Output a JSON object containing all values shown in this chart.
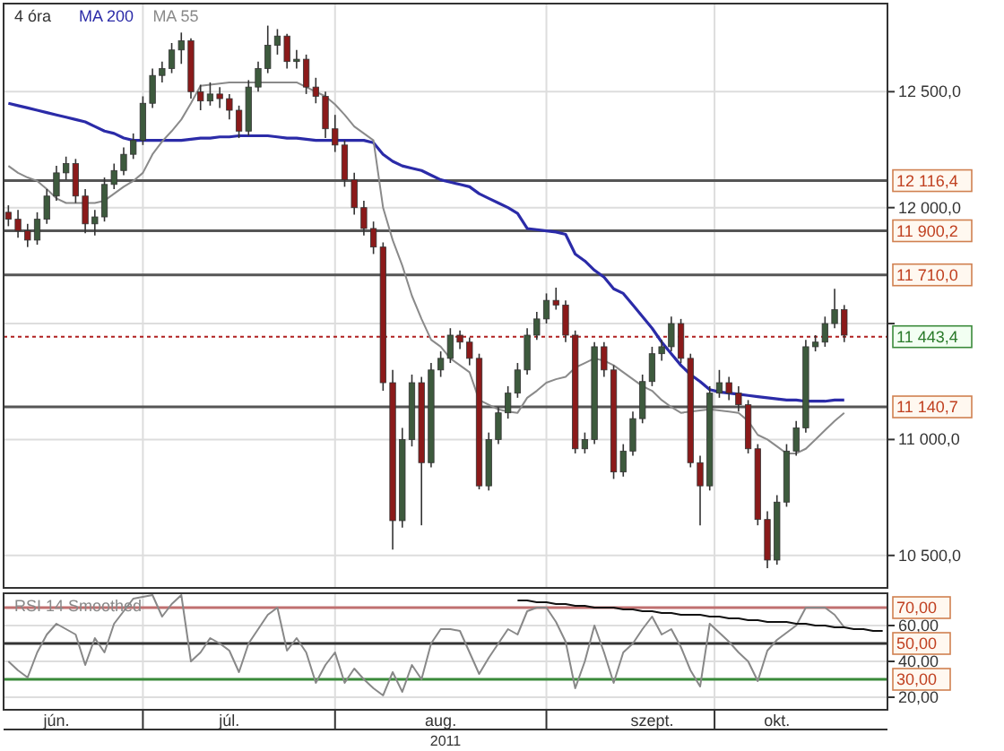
{
  "chart_data": [
    {
      "type": "candlestick",
      "legend": "top left",
      "grid": true,
      "tick_labels": "y",
      "categories": [
        null,
        null,
        null,
        null,
        null,
        null,
        null,
        null,
        null,
        null,
        null,
        null,
        null,
        null,
        null,
        null,
        null,
        null,
        null,
        null,
        null,
        null,
        null,
        null,
        null,
        null,
        null,
        null,
        null,
        null,
        null,
        null,
        null,
        null,
        null,
        null,
        null,
        null,
        null,
        null,
        null,
        null,
        null,
        null,
        null,
        null,
        null,
        null,
        null,
        null,
        null,
        null,
        null,
        null,
        null,
        null,
        null,
        null,
        null,
        null,
        null,
        null,
        null,
        null,
        null,
        null,
        null,
        null,
        null,
        null,
        null,
        null,
        null,
        null,
        null,
        null,
        null,
        null,
        null,
        null,
        null,
        null,
        null,
        null,
        null,
        null,
        null,
        null,
        null,
        null,
        null,
        null
      ],
      "series": [
        {
          "name": "4 óra",
          "color": "#333333",
          "ohlc": [
            [
              11980,
              12010,
              11920,
              11950
            ],
            [
              11950,
              11990,
              11870,
              11900
            ],
            [
              11900,
              11930,
              11830,
              11860
            ],
            [
              11860,
              11980,
              11840,
              11950
            ],
            [
              11950,
              12080,
              11930,
              12050
            ],
            [
              12050,
              12180,
              12030,
              12150
            ],
            [
              12150,
              12220,
              12120,
              12190
            ],
            [
              12190,
              12210,
              12020,
              12050
            ],
            [
              12050,
              12080,
              11890,
              11930
            ],
            [
              11930,
              11990,
              11880,
              11960
            ],
            [
              11960,
              12130,
              11940,
              12100
            ],
            [
              12100,
              12190,
              12080,
              12160
            ],
            [
              12160,
              12260,
              12140,
              12230
            ],
            [
              12230,
              12320,
              12210,
              12290
            ],
            [
              12290,
              12480,
              12270,
              12450
            ],
            [
              12450,
              12600,
              12430,
              12570
            ],
            [
              12570,
              12630,
              12540,
              12600
            ],
            [
              12600,
              12710,
              12580,
              12680
            ],
            [
              12680,
              12755,
              12620,
              12720
            ],
            [
              12720,
              12730,
              12470,
              12500
            ],
            [
              12500,
              12530,
              12420,
              12460
            ],
            [
              12460,
              12540,
              12440,
              12490
            ],
            [
              12490,
              12520,
              12430,
              12470
            ],
            [
              12470,
              12490,
              12380,
              12420
            ],
            [
              12420,
              12440,
              12300,
              12330
            ],
            [
              12330,
              12550,
              12310,
              12520
            ],
            [
              12520,
              12630,
              12500,
              12600
            ],
            [
              12600,
              12785,
              12580,
              12700
            ],
            [
              12700,
              12770,
              12660,
              12740
            ],
            [
              12740,
              12750,
              12600,
              12630
            ],
            [
              12630,
              12680,
              12600,
              12640
            ],
            [
              12640,
              12660,
              12490,
              12520
            ],
            [
              12520,
              12560,
              12450,
              12480
            ],
            [
              12480,
              12500,
              12300,
              12340
            ],
            [
              12340,
              12400,
              12240,
              12270
            ],
            [
              12270,
              12290,
              12090,
              12120
            ],
            [
              12120,
              12150,
              11970,
              12000
            ],
            [
              12000,
              12030,
              11880,
              11910
            ],
            [
              11910,
              11940,
              11800,
              11830
            ],
            [
              11830,
              11850,
              11210,
              11245
            ],
            [
              11245,
              11300,
              10525,
              10650
            ],
            [
              10650,
              11050,
              10620,
              11000
            ],
            [
              11000,
              11280,
              10970,
              11245
            ],
            [
              11245,
              11270,
              10630,
              10900
            ],
            [
              10900,
              11330,
              10880,
              11300
            ],
            [
              11300,
              11380,
              11270,
              11350
            ],
            [
              11350,
              11480,
              11330,
              11450
            ],
            [
              11450,
              11470,
              11390,
              11420
            ],
            [
              11420,
              11440,
              11320,
              11350
            ],
            [
              11350,
              11370,
              10785,
              10800
            ],
            [
              10800,
              11030,
              10780,
              11000
            ],
            [
              11000,
              11140,
              10980,
              11115
            ],
            [
              11115,
              11230,
              11090,
              11200
            ],
            [
              11200,
              11330,
              11180,
              11300
            ],
            [
              11300,
              11480,
              11280,
              11450
            ],
            [
              11450,
              11550,
              11430,
              11520
            ],
            [
              11520,
              11630,
              11500,
              11600
            ],
            [
              11600,
              11655,
              11560,
              11580
            ],
            [
              11580,
              11600,
              11420,
              11450
            ],
            [
              11450,
              11470,
              10940,
              10960
            ],
            [
              10960,
              11030,
              10940,
              11000
            ],
            [
              11000,
              11420,
              10980,
              11400
            ],
            [
              11400,
              11420,
              11270,
              11300
            ],
            [
              11300,
              11320,
              10830,
              10860
            ],
            [
              10860,
              10980,
              10840,
              10950
            ],
            [
              10950,
              11120,
              10930,
              11090
            ],
            [
              11090,
              11280,
              11070,
              11250
            ],
            [
              11250,
              11400,
              11230,
              11370
            ],
            [
              11370,
              11430,
              11340,
              11400
            ],
            [
              11400,
              11530,
              11380,
              11500
            ],
            [
              11500,
              11520,
              11330,
              11350
            ],
            [
              11350,
              11370,
              10880,
              10900
            ],
            [
              10900,
              10930,
              10630,
              10800
            ],
            [
              10800,
              11230,
              10780,
              11200
            ],
            [
              11200,
              11300,
              11180,
              11245
            ],
            [
              11245,
              11270,
              11170,
              11200
            ],
            [
              11200,
              11230,
              11120,
              11150
            ],
            [
              11150,
              11170,
              10940,
              10960
            ],
            [
              10960,
              10980,
              10630,
              10655
            ],
            [
              10655,
              10690,
              10445,
              10480
            ],
            [
              10480,
              10760,
              10460,
              10730
            ],
            [
              10730,
              10980,
              10710,
              10950
            ],
            [
              10950,
              11080,
              10930,
              11050
            ],
            [
              11050,
              11430,
              11030,
              11400
            ],
            [
              11400,
              11450,
              11380,
              11420
            ],
            [
              11420,
              11530,
              11400,
              11500
            ],
            [
              11500,
              11650,
              11480,
              11560
            ],
            [
              11560,
              11580,
              11420,
              11450
            ],
            null,
            null,
            null,
            null
          ]
        },
        {
          "name": "MA 200",
          "type": "line",
          "color": "#2b2ba8",
          "values": [
            12450,
            12440,
            12430,
            12420,
            12410,
            12400,
            12390,
            12380,
            12370,
            12350,
            12330,
            12320,
            12300,
            12290,
            12290,
            12290,
            12290,
            12290,
            12290,
            12295,
            12300,
            12300,
            12305,
            12305,
            12310,
            12310,
            12310,
            12310,
            12305,
            12300,
            12300,
            12295,
            12290,
            12290,
            12290,
            12290,
            12290,
            12290,
            12280,
            12230,
            12200,
            12180,
            12170,
            12160,
            12140,
            12120,
            12110,
            12100,
            12090,
            12060,
            12040,
            12020,
            12000,
            11975,
            11910,
            11905,
            11900,
            11895,
            11885,
            11800,
            11770,
            11730,
            11700,
            11650,
            11630,
            11580,
            11530,
            11480,
            11420,
            11370,
            11320,
            11280,
            11250,
            11215,
            11205,
            11200,
            11195,
            11190,
            11185,
            11180,
            11175,
            11170,
            11170,
            11165,
            11165,
            11165,
            11170,
            11170,
            null,
            null,
            null,
            null
          ]
        },
        {
          "name": "MA 55",
          "type": "line",
          "color": "#8a8a8a",
          "values": [
            12180,
            12150,
            12130,
            12115,
            12080,
            12040,
            12020,
            12020,
            12020,
            12020,
            12030,
            12060,
            12090,
            12115,
            12150,
            12230,
            12285,
            12330,
            12380,
            12450,
            12525,
            12530,
            12535,
            12540,
            12540,
            12540,
            12540,
            12540,
            12540,
            12540,
            12540,
            12520,
            12500,
            12480,
            12445,
            12400,
            12350,
            12320,
            12290,
            12000,
            11860,
            11750,
            11620,
            11520,
            11430,
            11400,
            11350,
            11320,
            11290,
            11170,
            11150,
            11130,
            11120,
            11115,
            11180,
            11210,
            11245,
            11260,
            11270,
            11310,
            11330,
            11350,
            11340,
            11320,
            11290,
            11260,
            11230,
            11210,
            11170,
            11140,
            11115,
            11120,
            11125,
            11130,
            11125,
            11120,
            11115,
            11080,
            11020,
            11000,
            10970,
            10940,
            10940,
            10960,
            11000,
            11040,
            11080,
            11115,
            null,
            null,
            null,
            null
          ]
        }
      ],
      "ylim": [
        10360,
        12880
      ],
      "yticks": [
        {
          "value": 10500,
          "label": "10 500,0"
        },
        {
          "value": 11000,
          "label": "11 000,0"
        },
        {
          "value": 11500,
          "label": null
        },
        {
          "value": 12000,
          "label": "12 000,0"
        },
        {
          "value": 12500,
          "label": "12 500,0"
        }
      ],
      "ref_lines": [
        {
          "axis": "y",
          "value": 12116.4,
          "label": "12 116,4",
          "color": "#555555"
        },
        {
          "axis": "y",
          "value": 11900.2,
          "label": "11 900,2",
          "color": "#555555"
        },
        {
          "axis": "y",
          "value": 11710.0,
          "label": "11 710,0",
          "color": "#555555"
        },
        {
          "axis": "y",
          "value": 11443.4,
          "label": "11 443,4",
          "color": "#b02020",
          "line_style": "dotted"
        },
        {
          "axis": "y",
          "value": 11140.7,
          "label": "11 140,7",
          "color": "#555555"
        }
      ]
    },
    {
      "type": "line",
      "legend": "top left",
      "grid": true,
      "xlabel": "2011",
      "categories": [
        null,
        null,
        null,
        null,
        null,
        "jún.",
        null,
        null,
        null,
        null,
        null,
        null,
        null,
        null,
        null,
        null,
        null,
        null,
        null,
        null,
        null,
        null,
        null,
        "júl.",
        null,
        null,
        null,
        null,
        null,
        null,
        null,
        null,
        null,
        null,
        null,
        null,
        null,
        null,
        null,
        null,
        null,
        null,
        null,
        null,
        null,
        "aug.",
        null,
        null,
        null,
        null,
        null,
        null,
        null,
        null,
        null,
        null,
        null,
        null,
        null,
        null,
        null,
        null,
        null,
        null,
        null,
        null,
        null,
        "szept.",
        null,
        null,
        null,
        null,
        null,
        null,
        null,
        null,
        null,
        null,
        null,
        null,
        "okt.",
        null,
        null,
        null,
        null,
        null,
        null,
        null,
        null,
        null,
        null,
        null
      ],
      "series": [
        {
          "name": "RSI 14 Smoothed",
          "color": "#888888",
          "values": [
            40,
            35,
            31,
            45,
            55,
            61,
            58,
            55,
            38,
            53,
            45,
            61,
            68,
            75,
            76,
            77,
            65,
            72,
            77,
            40,
            45,
            53,
            50,
            46,
            34,
            50,
            58,
            66,
            70,
            46,
            53,
            45,
            28,
            38,
            45,
            28,
            36,
            30,
            25,
            21,
            34,
            23,
            38,
            30,
            50,
            58,
            58,
            57,
            45,
            33,
            42,
            50,
            58,
            55,
            68,
            70,
            70,
            62,
            51,
            25,
            40,
            60,
            45,
            28,
            45,
            50,
            58,
            65,
            55,
            58,
            48,
            35,
            26,
            61,
            56,
            51,
            45,
            40,
            29,
            46,
            52,
            56,
            60,
            70,
            70,
            70,
            66,
            59,
            null,
            null,
            null,
            null
          ]
        },
        {
          "color": "#111111",
          "values": [
            null,
            null,
            null,
            null,
            null,
            null,
            null,
            null,
            null,
            null,
            null,
            null,
            null,
            null,
            null,
            null,
            null,
            null,
            null,
            null,
            null,
            null,
            null,
            null,
            null,
            null,
            null,
            null,
            null,
            null,
            null,
            null,
            null,
            null,
            null,
            null,
            null,
            null,
            null,
            null,
            null,
            null,
            null,
            null,
            null,
            null,
            null,
            null,
            null,
            null,
            null,
            null,
            null,
            74,
            74,
            73,
            73,
            72,
            72,
            71,
            71,
            70,
            70,
            70,
            69,
            69,
            68,
            68,
            67,
            67,
            66,
            66,
            66,
            65,
            65,
            64,
            64,
            63,
            63,
            62,
            62,
            62,
            61,
            61,
            60,
            60,
            59,
            59,
            58,
            58,
            57,
            57
          ]
        }
      ],
      "ylim": [
        13,
        78
      ],
      "yticks": [
        {
          "value": 20,
          "label": "20,00"
        },
        {
          "value": 40,
          "label": "40,00"
        },
        {
          "value": 60,
          "label": "60,00"
        }
      ],
      "ref_lines": [
        {
          "axis": "y",
          "value": 70,
          "label": "70,00",
          "color": "#c07070"
        },
        {
          "axis": "y",
          "value": 50,
          "label": "50,00",
          "color": "#333333"
        },
        {
          "axis": "y",
          "value": 30,
          "label": "30,00",
          "color": "#3a8a3a"
        }
      ]
    }
  ]
}
